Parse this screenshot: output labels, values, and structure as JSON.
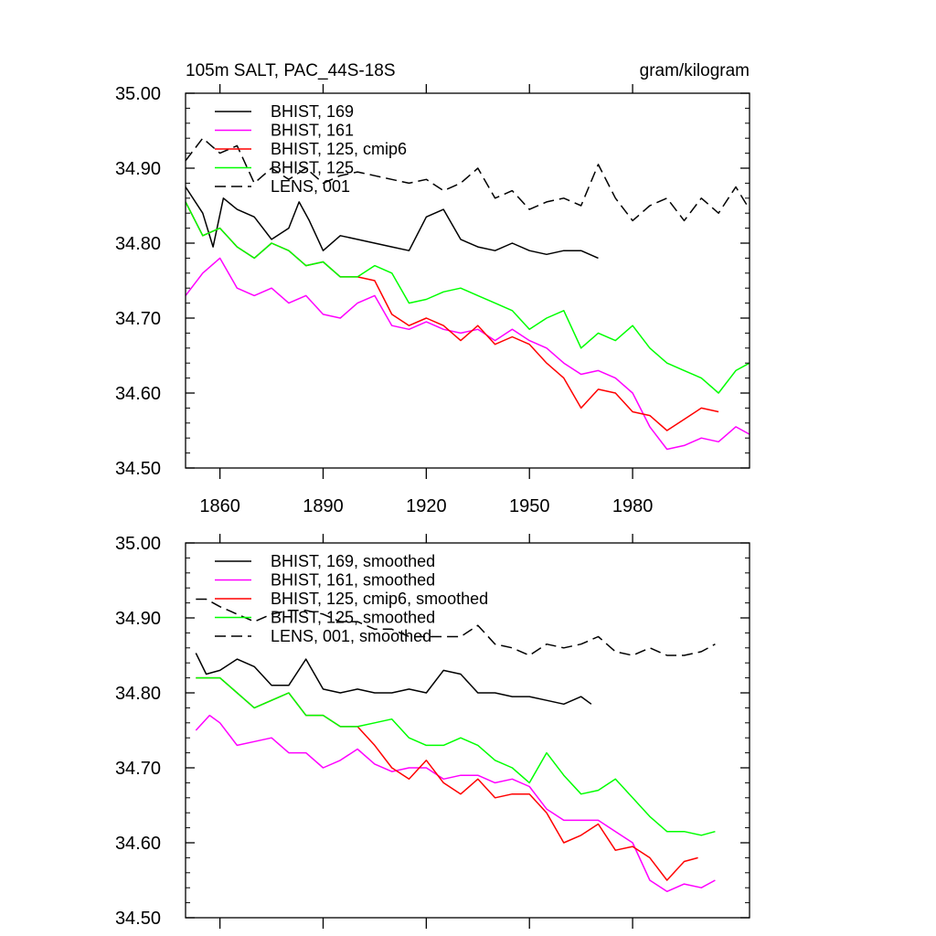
{
  "chart_data": [
    {
      "type": "line",
      "title": "105m SALT, PAC_44S-18S",
      "units": "gram/kilogram",
      "xlim": [
        1850,
        2014
      ],
      "ylim": [
        34.5,
        35.0
      ],
      "xticks": [
        1860,
        1890,
        1920,
        1950,
        1980
      ],
      "xtick_labels": [
        "1860",
        "1890",
        "1920",
        "1950",
        "1980"
      ],
      "yticks": [
        34.5,
        34.6,
        34.7,
        34.8,
        34.9,
        35.0
      ],
      "ytick_labels": [
        "34.50",
        "34.60",
        "34.70",
        "34.80",
        "34.90",
        "35.00"
      ],
      "series": [
        {
          "name": "BHIST, 169",
          "color": "#000000",
          "dash": "solid",
          "x": [
            1850,
            1855,
            1858,
            1861,
            1865,
            1870,
            1875,
            1880,
            1883,
            1886,
            1890,
            1895,
            1900,
            1905,
            1910,
            1915,
            1920,
            1925,
            1930,
            1935,
            1940,
            1945,
            1950,
            1955,
            1960,
            1965,
            1970
          ],
          "y": [
            34.875,
            34.84,
            34.795,
            34.86,
            34.845,
            34.835,
            34.805,
            34.82,
            34.855,
            34.83,
            34.79,
            34.81,
            34.805,
            34.8,
            34.795,
            34.79,
            34.835,
            34.845,
            34.805,
            34.795,
            34.79,
            34.8,
            34.79,
            34.785,
            34.79,
            34.79,
            34.78
          ]
        },
        {
          "name": "BHIST, 161",
          "color": "#ff00ff",
          "dash": "solid",
          "x": [
            1850,
            1855,
            1860,
            1865,
            1870,
            1875,
            1880,
            1885,
            1890,
            1895,
            1900,
            1905,
            1910,
            1915,
            1920,
            1925,
            1930,
            1935,
            1940,
            1945,
            1950,
            1955,
            1960,
            1965,
            1970,
            1975,
            1980,
            1985,
            1990,
            1995,
            2000,
            2005,
            2010,
            2014
          ],
          "y": [
            34.73,
            34.76,
            34.78,
            34.74,
            34.73,
            34.74,
            34.72,
            34.73,
            34.705,
            34.7,
            34.72,
            34.73,
            34.69,
            34.685,
            34.695,
            34.685,
            34.68,
            34.685,
            34.67,
            34.685,
            34.67,
            34.66,
            34.64,
            34.625,
            34.63,
            34.62,
            34.6,
            34.555,
            34.525,
            34.53,
            34.54,
            34.535,
            34.555,
            34.545
          ]
        },
        {
          "name": "BHIST, 125, cmip6",
          "color": "#ff0000",
          "dash": "solid",
          "x": [
            1850,
            1855,
            1860,
            1865,
            1870,
            1875,
            1880,
            1885,
            1890,
            1895,
            1900,
            1905,
            1910,
            1915,
            1920,
            1925,
            1930,
            1935,
            1940,
            1945,
            1950,
            1955,
            1960,
            1965,
            1970,
            1975,
            1980,
            1985,
            1990,
            1995,
            2000,
            2005
          ],
          "y": [
            34.855,
            34.81,
            34.82,
            34.795,
            34.78,
            34.8,
            34.79,
            34.77,
            34.775,
            34.755,
            34.755,
            34.75,
            34.705,
            34.69,
            34.7,
            34.69,
            34.67,
            34.69,
            34.665,
            34.675,
            34.665,
            34.64,
            34.62,
            34.58,
            34.605,
            34.6,
            34.575,
            34.57,
            34.55,
            34.565,
            34.58,
            34.575
          ]
        },
        {
          "name": "BHIST, 125",
          "color": "#00ff00",
          "dash": "solid",
          "x": [
            1850,
            1855,
            1860,
            1865,
            1870,
            1875,
            1880,
            1885,
            1890,
            1895,
            1900,
            1905,
            1910,
            1915,
            1920,
            1925,
            1930,
            1935,
            1940,
            1945,
            1950,
            1955,
            1960,
            1965,
            1970,
            1975,
            1980,
            1985,
            1990,
            1995,
            2000,
            2005,
            2010,
            2014
          ],
          "y": [
            34.855,
            34.81,
            34.82,
            34.795,
            34.78,
            34.8,
            34.79,
            34.77,
            34.775,
            34.755,
            34.755,
            34.77,
            34.76,
            34.72,
            34.725,
            34.735,
            34.74,
            34.73,
            34.72,
            34.71,
            34.685,
            34.7,
            34.71,
            34.66,
            34.68,
            34.67,
            34.69,
            34.66,
            34.64,
            34.63,
            34.62,
            34.6,
            34.63,
            34.64
          ]
        },
        {
          "name": "LENS, 001",
          "color": "#000000",
          "dash": "dashed",
          "x": [
            1850,
            1855,
            1860,
            1865,
            1870,
            1875,
            1880,
            1885,
            1890,
            1895,
            1900,
            1905,
            1910,
            1915,
            1920,
            1925,
            1930,
            1935,
            1940,
            1945,
            1950,
            1955,
            1960,
            1965,
            1970,
            1975,
            1980,
            1985,
            1990,
            1995,
            2000,
            2005,
            2010,
            2014
          ],
          "y": [
            34.91,
            34.94,
            34.92,
            34.93,
            34.88,
            34.9,
            34.885,
            34.9,
            34.88,
            34.89,
            34.895,
            34.89,
            34.885,
            34.88,
            34.885,
            34.87,
            34.88,
            34.9,
            34.86,
            34.87,
            34.845,
            34.855,
            34.86,
            34.85,
            34.905,
            34.86,
            34.83,
            34.85,
            34.86,
            34.83,
            34.86,
            34.84,
            34.875,
            34.845
          ]
        }
      ]
    },
    {
      "type": "line",
      "xlim": [
        1850,
        2014
      ],
      "ylim": [
        34.5,
        35.0
      ],
      "xticks": [
        1860,
        1890,
        1920,
        1950,
        1980
      ],
      "yticks": [
        34.5,
        34.6,
        34.7,
        34.8,
        34.9,
        35.0
      ],
      "ytick_labels": [
        "34.50",
        "34.60",
        "34.70",
        "34.80",
        "34.90",
        "35.00"
      ],
      "series": [
        {
          "name": "BHIST, 169, smoothed",
          "color": "#000000",
          "dash": "solid",
          "x": [
            1853,
            1856,
            1860,
            1865,
            1870,
            1875,
            1880,
            1885,
            1890,
            1895,
            1900,
            1905,
            1910,
            1915,
            1920,
            1925,
            1930,
            1935,
            1940,
            1945,
            1950,
            1955,
            1960,
            1965,
            1968
          ],
          "y": [
            34.853,
            34.825,
            34.83,
            34.845,
            34.835,
            34.81,
            34.81,
            34.845,
            34.805,
            34.8,
            34.805,
            34.8,
            34.8,
            34.805,
            34.8,
            34.83,
            34.825,
            34.8,
            34.8,
            34.795,
            34.795,
            34.79,
            34.785,
            34.795,
            34.785
          ]
        },
        {
          "name": "BHIST, 161, smoothed",
          "color": "#ff00ff",
          "dash": "solid",
          "x": [
            1853,
            1857,
            1860,
            1865,
            1870,
            1875,
            1880,
            1885,
            1890,
            1895,
            1900,
            1905,
            1910,
            1915,
            1920,
            1925,
            1930,
            1935,
            1940,
            1945,
            1950,
            1955,
            1960,
            1965,
            1970,
            1975,
            1980,
            1985,
            1990,
            1995,
            2000,
            2004
          ],
          "y": [
            34.75,
            34.77,
            34.76,
            34.73,
            34.735,
            34.74,
            34.72,
            34.72,
            34.7,
            34.71,
            34.725,
            34.705,
            34.695,
            34.7,
            34.7,
            34.685,
            34.69,
            34.69,
            34.68,
            34.685,
            34.675,
            34.645,
            34.63,
            34.63,
            34.63,
            34.615,
            34.6,
            34.55,
            34.535,
            34.545,
            34.54,
            34.55
          ]
        },
        {
          "name": "BHIST, 125, cmip6, smoothed",
          "color": "#ff0000",
          "dash": "solid",
          "x": [
            1853,
            1860,
            1865,
            1870,
            1875,
            1880,
            1885,
            1890,
            1895,
            1900,
            1905,
            1910,
            1915,
            1920,
            1925,
            1930,
            1935,
            1940,
            1945,
            1950,
            1955,
            1960,
            1965,
            1970,
            1975,
            1980,
            1985,
            1990,
            1995,
            1999
          ],
          "y": [
            34.82,
            34.82,
            34.8,
            34.78,
            34.79,
            34.8,
            34.77,
            34.77,
            34.755,
            34.755,
            34.73,
            34.7,
            34.685,
            34.71,
            34.68,
            34.665,
            34.685,
            34.66,
            34.665,
            34.665,
            34.64,
            34.6,
            34.61,
            34.625,
            34.59,
            34.595,
            34.58,
            34.55,
            34.575,
            34.58
          ]
        },
        {
          "name": "BHIST, 125, smoothed",
          "color": "#00ff00",
          "dash": "solid",
          "x": [
            1853,
            1860,
            1865,
            1870,
            1875,
            1880,
            1885,
            1890,
            1895,
            1900,
            1905,
            1910,
            1915,
            1920,
            1925,
            1930,
            1935,
            1940,
            1945,
            1950,
            1955,
            1960,
            1965,
            1970,
            1975,
            1980,
            1985,
            1990,
            1995,
            2000,
            2004
          ],
          "y": [
            34.82,
            34.82,
            34.8,
            34.78,
            34.79,
            34.8,
            34.77,
            34.77,
            34.755,
            34.755,
            34.76,
            34.765,
            34.74,
            34.73,
            34.73,
            34.74,
            34.73,
            34.71,
            34.7,
            34.68,
            34.72,
            34.69,
            34.665,
            34.67,
            34.685,
            34.66,
            34.635,
            34.615,
            34.615,
            34.61,
            34.615
          ]
        },
        {
          "name": "LENS, 001, smoothed",
          "color": "#000000",
          "dash": "dashed",
          "x": [
            1853,
            1856,
            1860,
            1865,
            1870,
            1875,
            1880,
            1885,
            1890,
            1895,
            1900,
            1905,
            1910,
            1915,
            1920,
            1925,
            1930,
            1935,
            1940,
            1945,
            1950,
            1955,
            1960,
            1965,
            1970,
            1975,
            1980,
            1985,
            1990,
            1995,
            2000,
            2004
          ],
          "y": [
            34.925,
            34.925,
            34.915,
            34.905,
            34.895,
            34.905,
            34.91,
            34.91,
            34.905,
            34.895,
            34.895,
            34.885,
            34.885,
            34.875,
            34.875,
            34.875,
            34.875,
            34.89,
            34.865,
            34.86,
            34.85,
            34.865,
            34.86,
            34.865,
            34.875,
            34.855,
            34.85,
            34.86,
            34.85,
            34.85,
            34.855,
            34.865
          ]
        }
      ]
    }
  ]
}
